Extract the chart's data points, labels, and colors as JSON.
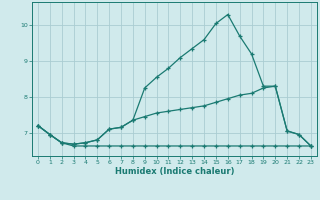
{
  "xlabel": "Humidex (Indice chaleur)",
  "bg_color": "#d0eaec",
  "grid_color": "#aacdd2",
  "line_color": "#1a7a72",
  "x_ticks": [
    0,
    1,
    2,
    3,
    4,
    5,
    6,
    7,
    8,
    9,
    10,
    11,
    12,
    13,
    14,
    15,
    16,
    17,
    18,
    19,
    20,
    21,
    22,
    23
  ],
  "y_ticks": [
    7,
    8,
    9,
    10
  ],
  "ylim": [
    6.35,
    10.65
  ],
  "xlim": [
    -0.5,
    23.5
  ],
  "series": [
    {
      "x": [
        0,
        1,
        2,
        3,
        4,
        5,
        6,
        7,
        8,
        9,
        10,
        11,
        12,
        13,
        14,
        15,
        16,
        17,
        18,
        19,
        20,
        21,
        22,
        23
      ],
      "y": [
        7.2,
        6.95,
        6.72,
        6.63,
        6.63,
        6.63,
        6.63,
        6.63,
        6.63,
        6.63,
        6.63,
        6.63,
        6.63,
        6.63,
        6.63,
        6.63,
        6.63,
        6.63,
        6.63,
        6.63,
        6.63,
        6.63,
        6.63,
        6.63
      ]
    },
    {
      "x": [
        0,
        1,
        2,
        3,
        4,
        5,
        6,
        7,
        8,
        9,
        10,
        11,
        12,
        13,
        14,
        15,
        16,
        17,
        18,
        19,
        20,
        21,
        22,
        23
      ],
      "y": [
        7.2,
        6.95,
        6.72,
        6.68,
        6.72,
        6.8,
        7.1,
        7.15,
        7.35,
        7.45,
        7.55,
        7.6,
        7.65,
        7.7,
        7.75,
        7.85,
        7.95,
        8.05,
        8.1,
        8.25,
        8.3,
        7.05,
        6.95,
        6.63
      ]
    },
    {
      "x": [
        0,
        1,
        2,
        3,
        4,
        5,
        6,
        7,
        8,
        9,
        10,
        11,
        12,
        13,
        14,
        15,
        16,
        17,
        18,
        19,
        20,
        21,
        22,
        23
      ],
      "y": [
        7.2,
        6.95,
        6.72,
        6.68,
        6.72,
        6.8,
        7.1,
        7.15,
        7.35,
        8.25,
        8.55,
        8.8,
        9.1,
        9.35,
        9.6,
        10.05,
        10.3,
        9.7,
        9.2,
        8.3,
        8.3,
        7.05,
        6.95,
        6.63
      ]
    }
  ]
}
